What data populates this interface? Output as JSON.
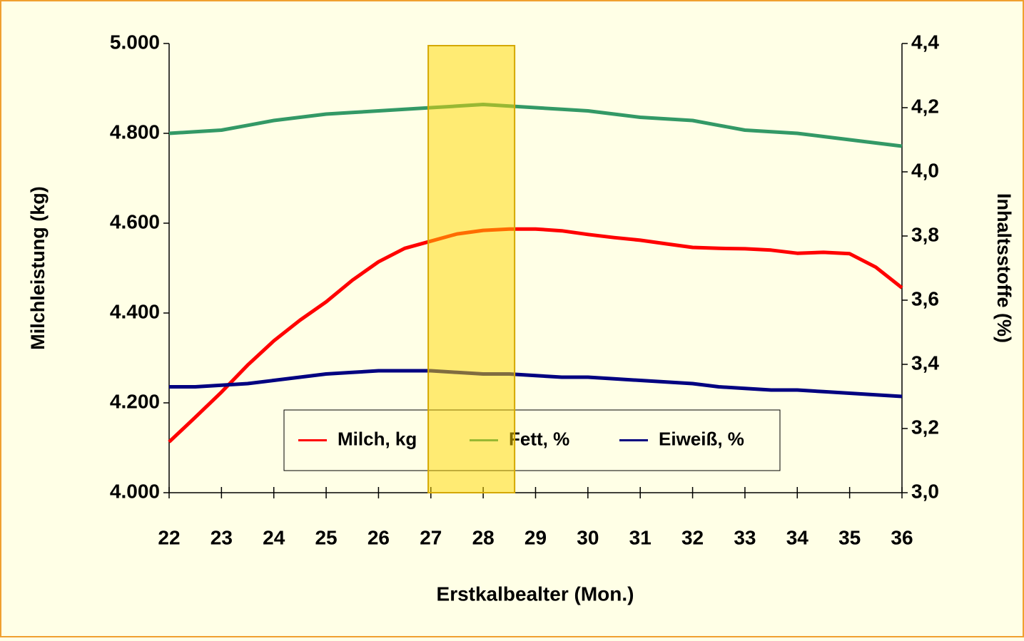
{
  "chart_data": {
    "type": "line",
    "x_label": "Erstkalbealter (Mon.)",
    "y_label": "Milchleistung (kg)",
    "y2_label": "Inhaltsstoffe (%)",
    "x": [
      22,
      22.5,
      23,
      23.5,
      24,
      24.5,
      25,
      25.5,
      26,
      26.5,
      27,
      27.5,
      28,
      28.5,
      29,
      29.5,
      30,
      30.5,
      31,
      31.5,
      32,
      32.5,
      33,
      33.5,
      34,
      34.5,
      35,
      35.5,
      36
    ],
    "series": [
      {
        "name": "Milch, kg",
        "color": "#ff0000",
        "axis": "y",
        "values": [
          4113,
          4168,
          4224,
          4284,
          4338,
          4384,
          4425,
          4473,
          4514,
          4544,
          4560,
          4576,
          4584,
          4587,
          4587,
          4583,
          4575,
          4568,
          4562,
          4554,
          4546,
          4544,
          4543,
          4540,
          4533,
          4535,
          4532,
          4502,
          4456
        ]
      },
      {
        "name": "Fett, %",
        "color": "#339966",
        "axis": "y2",
        "values": [
          4.12,
          4.125,
          4.13,
          4.145,
          4.16,
          4.17,
          4.18,
          4.185,
          4.19,
          4.195,
          4.2,
          4.205,
          4.21,
          4.205,
          4.2,
          4.195,
          4.19,
          4.18,
          4.17,
          4.165,
          4.16,
          4.145,
          4.13,
          4.125,
          4.12,
          4.11,
          4.1,
          4.09,
          4.08
        ]
      },
      {
        "name": "Eiweiß, %",
        "color": "#000080",
        "axis": "y2",
        "values": [
          3.33,
          3.33,
          3.335,
          3.34,
          3.35,
          3.36,
          3.37,
          3.375,
          3.38,
          3.38,
          3.38,
          3.375,
          3.37,
          3.37,
          3.365,
          3.36,
          3.36,
          3.355,
          3.35,
          3.345,
          3.34,
          3.33,
          3.325,
          3.32,
          3.32,
          3.315,
          3.31,
          3.305,
          3.3
        ]
      }
    ],
    "xlim": [
      22,
      36
    ],
    "xticks": [
      22,
      23,
      24,
      25,
      26,
      27,
      28,
      29,
      30,
      31,
      32,
      33,
      34,
      35,
      36
    ],
    "ylim": [
      4000,
      5000
    ],
    "yticks": [
      {
        "value": 4000,
        "label": "4.000"
      },
      {
        "value": 4200,
        "label": "4.200"
      },
      {
        "value": 4400,
        "label": "4.400"
      },
      {
        "value": 4600,
        "label": "4.600"
      },
      {
        "value": 4800,
        "label": "4.800"
      },
      {
        "value": 5000,
        "label": "5.000"
      }
    ],
    "y2lim": [
      3.0,
      4.4
    ],
    "y2ticks": [
      {
        "value": 3.0,
        "label": "3,0"
      },
      {
        "value": 3.2,
        "label": "3,2"
      },
      {
        "value": 3.4,
        "label": "3,4"
      },
      {
        "value": 3.6,
        "label": "3,6"
      },
      {
        "value": 3.8,
        "label": "3,8"
      },
      {
        "value": 4.0,
        "label": "4,0"
      },
      {
        "value": 4.2,
        "label": "4,2"
      },
      {
        "value": 4.4,
        "label": "4,4"
      }
    ],
    "highlight_xrange": [
      26.95,
      28.6
    ],
    "highlight_color": "#ffd700",
    "grid": false,
    "legend": "bottom"
  }
}
